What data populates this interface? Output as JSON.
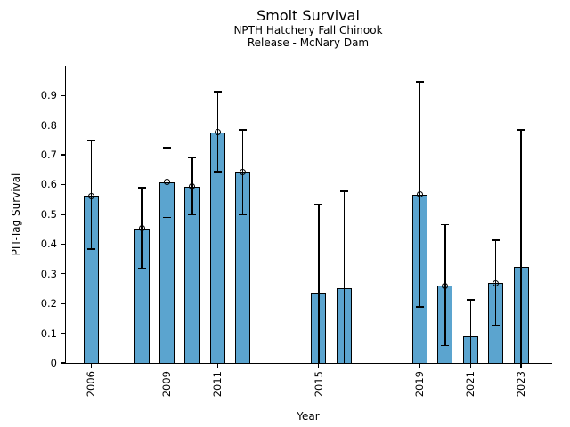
{
  "header": {
    "title": "Smolt Survival",
    "subtitle_line1": "NPTH Hatchery Fall Chinook",
    "subtitle_line2": "Release - McNary Dam"
  },
  "chart_data": {
    "type": "bar",
    "title": "Smolt Survival",
    "subtitle": [
      "NPTH Hatchery Fall Chinook",
      "Release - McNary Dam"
    ],
    "xlabel": "Year",
    "ylabel": "PIT-Tag Survival",
    "xlim": [
      2005,
      2024.2
    ],
    "ylim": [
      0,
      0.995
    ],
    "grid": false,
    "legend": "none",
    "bar_color": "#5BA4CF",
    "bar_edge_color": "#000000",
    "errorbar_color": "#000000",
    "yticks": [
      0,
      0.1,
      0.2,
      0.3,
      0.4,
      0.5,
      0.6,
      0.7,
      0.8,
      0.9
    ],
    "ytick_labels": [
      "0",
      "0.1",
      "0.2",
      "0.3",
      "0.4",
      "0.5",
      "0.6",
      "0.7",
      "0.8",
      "0.9"
    ],
    "xticks": [
      2006,
      2009,
      2011,
      2015,
      2019,
      2021,
      2023
    ],
    "xtick_labels": [
      "2006",
      "2009",
      "2011",
      "2015",
      "2019",
      "2021",
      "2023"
    ],
    "points": [
      {
        "year": 2006,
        "value": 0.562,
        "ci_low": 0.383,
        "ci_high": 0.748,
        "marker": true,
        "low_cap": true
      },
      {
        "year": 2008,
        "value": 0.453,
        "ci_low": 0.319,
        "ci_high": 0.59,
        "marker": true,
        "low_cap": true
      },
      {
        "year": 2009,
        "value": 0.608,
        "ci_low": 0.49,
        "ci_high": 0.724,
        "marker": true,
        "low_cap": true
      },
      {
        "year": 2010,
        "value": 0.593,
        "ci_low": 0.5,
        "ci_high": 0.69,
        "marker": true,
        "low_cap": true
      },
      {
        "year": 2011,
        "value": 0.776,
        "ci_low": 0.643,
        "ci_high": 0.912,
        "marker": true,
        "low_cap": true
      },
      {
        "year": 2012,
        "value": 0.642,
        "ci_low": 0.498,
        "ci_high": 0.784,
        "marker": true,
        "low_cap": true
      },
      {
        "year": 2015,
        "value": 0.235,
        "ci_low": 0.0,
        "ci_high": 0.533,
        "marker": false,
        "low_cap": false
      },
      {
        "year": 2016,
        "value": 0.25,
        "ci_low": 0.0,
        "ci_high": 0.578,
        "marker": false,
        "low_cap": false
      },
      {
        "year": 2019,
        "value": 0.567,
        "ci_low": 0.188,
        "ci_high": 0.945,
        "marker": true,
        "low_cap": true
      },
      {
        "year": 2020,
        "value": 0.259,
        "ci_low": 0.058,
        "ci_high": 0.466,
        "marker": true,
        "low_cap": true
      },
      {
        "year": 2021,
        "value": 0.09,
        "ci_low": 0.0,
        "ci_high": 0.212,
        "marker": false,
        "low_cap": false
      },
      {
        "year": 2022,
        "value": 0.269,
        "ci_low": 0.126,
        "ci_high": 0.413,
        "marker": true,
        "low_cap": true
      },
      {
        "year": 2023,
        "value": 0.322,
        "ci_low": 0.0,
        "ci_high": 0.784,
        "marker": false,
        "low_cap": false
      }
    ]
  }
}
